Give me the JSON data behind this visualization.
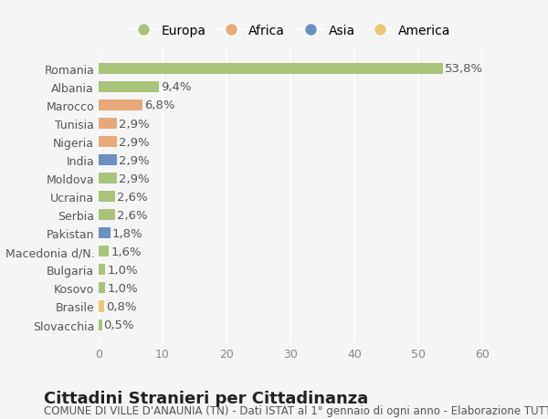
{
  "countries": [
    "Romania",
    "Albania",
    "Marocco",
    "Tunisia",
    "Nigeria",
    "India",
    "Moldova",
    "Ucraina",
    "Serbia",
    "Pakistan",
    "Macedonia d/N.",
    "Bulgaria",
    "Kosovo",
    "Brasile",
    "Slovacchia"
  ],
  "values": [
    53.8,
    9.4,
    6.8,
    2.9,
    2.9,
    2.9,
    2.9,
    2.6,
    2.6,
    1.8,
    1.6,
    1.0,
    1.0,
    0.8,
    0.5
  ],
  "labels": [
    "53,8%",
    "9,4%",
    "6,8%",
    "2,9%",
    "2,9%",
    "2,9%",
    "2,9%",
    "2,6%",
    "2,6%",
    "1,8%",
    "1,6%",
    "1,0%",
    "1,0%",
    "0,8%",
    "0,5%"
  ],
  "colors": [
    "#a8c47a",
    "#a8c47a",
    "#e8a97a",
    "#e8a97a",
    "#e8a97a",
    "#6b8fbf",
    "#a8c47a",
    "#a8c47a",
    "#a8c47a",
    "#6b8fbf",
    "#a8c47a",
    "#a8c47a",
    "#a8c47a",
    "#e8c97a",
    "#a8c47a"
  ],
  "legend_labels": [
    "Europa",
    "Africa",
    "Asia",
    "America"
  ],
  "legend_colors": [
    "#a8c47a",
    "#e8a97a",
    "#6b8fbf",
    "#e8c97a"
  ],
  "xlim": [
    0,
    60
  ],
  "xticks": [
    0,
    10,
    20,
    30,
    40,
    50,
    60
  ],
  "title": "Cittadini Stranieri per Cittadinanza",
  "subtitle": "COMUNE DI VILLE D'ANAUNIA (TN) - Dati ISTAT al 1° gennaio di ogni anno - Elaborazione TUTTITALIA.IT",
  "bg_color": "#f5f5f5",
  "bar_height": 0.6,
  "grid_color": "#ffffff",
  "label_fontsize": 9.5,
  "tick_fontsize": 9,
  "title_fontsize": 13,
  "subtitle_fontsize": 8.5
}
